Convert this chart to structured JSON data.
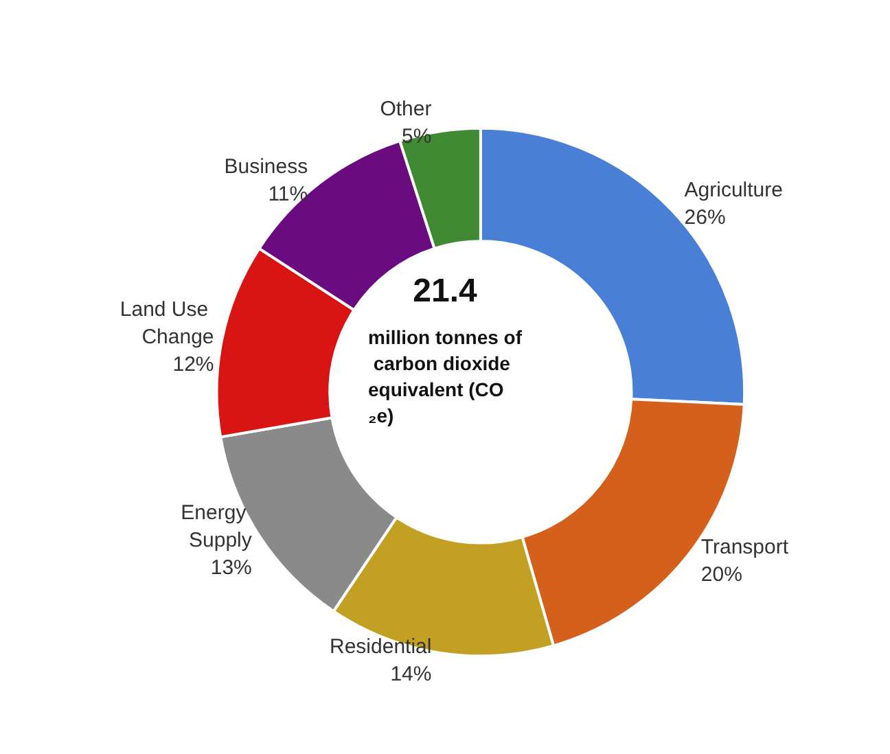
{
  "chart_data": {
    "type": "donut",
    "categories": [
      "Agriculture",
      "Transport",
      "Residential",
      "Energy Supply",
      "Land Use Change",
      "Business",
      "Other"
    ],
    "values": [
      26,
      20,
      14,
      13,
      12,
      11,
      5
    ],
    "value_labels": [
      "26%",
      "20%",
      "14%",
      "13%",
      "12%",
      "11%",
      "5%"
    ],
    "colors": [
      "#4a7fd6",
      "#d4601c",
      "#c2a024",
      "#8a8a8a",
      "#d81414",
      "#6a0c80",
      "#3f8a32"
    ],
    "annotations": [
      "21.4",
      "million tonnes of carbon dioxide equivalent (CO₂e)"
    ],
    "legend": false
  }
}
